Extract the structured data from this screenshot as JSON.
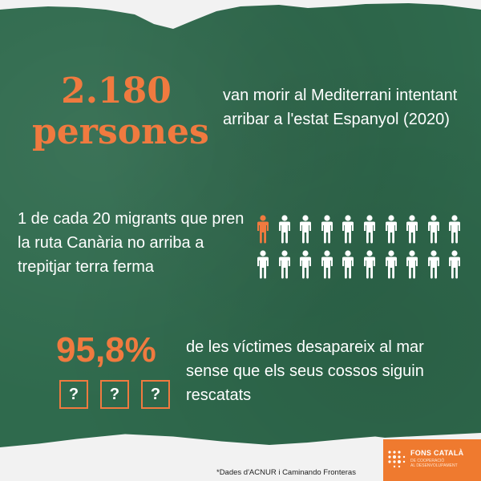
{
  "stats": {
    "stat1": {
      "number": "2.180",
      "unit": "persones",
      "text": "van morir al Mediterrani intentant arribar a l'estat Espanyol (2020)"
    },
    "stat2": {
      "text": "1 de cada 20 migrants que pren la ruta Canària no arriba a trepitjar terra ferma",
      "icons_total": 20,
      "icons_highlighted": 1,
      "icon_name": "person-icon",
      "highlight_color": "#f07a3f",
      "default_color": "#ffffff"
    },
    "stat3": {
      "number": "95,8%",
      "text": "de les víctimes desapareix al mar sense que els seus cossos siguin rescatats",
      "question_marks": [
        "?",
        "?",
        "?"
      ]
    }
  },
  "footer": {
    "source": "*Dades d'ACNUR i Caminando Fronteras",
    "logo": {
      "title": "FONS CATALÀ",
      "subtitle_line1": "DE COOPERACIÓ",
      "subtitle_line2": "AL DESENVOLUPAMENT"
    }
  },
  "colors": {
    "background": "#2f6a4d",
    "accent": "#f07a3f",
    "text": "#ffffff"
  }
}
